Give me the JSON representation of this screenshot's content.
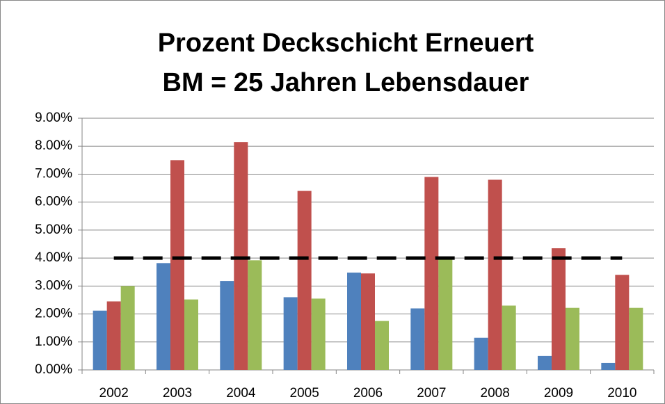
{
  "chart_data": {
    "type": "bar",
    "title_lines": [
      "Prozent Deckschicht Erneuert",
      "BM = 25 Jahren Lebensdauer"
    ],
    "categories": [
      "2002",
      "2003",
      "2004",
      "2005",
      "2006",
      "2007",
      "2008",
      "2009",
      "2010"
    ],
    "series": [
      {
        "color": "#4f81bd",
        "values": [
          2.12,
          3.82,
          3.18,
          2.6,
          3.48,
          2.2,
          1.15,
          0.5,
          0.25
        ]
      },
      {
        "color": "#c0504d",
        "values": [
          2.45,
          7.5,
          8.15,
          6.4,
          3.45,
          6.9,
          6.8,
          4.35,
          3.4
        ]
      },
      {
        "color": "#9bbb59",
        "values": [
          3.0,
          2.52,
          3.92,
          2.55,
          1.75,
          4.05,
          2.3,
          2.22,
          2.22
        ]
      },
      {
        "type": "line",
        "color": "#000000",
        "dashed": true,
        "values": [
          4,
          4,
          4,
          4,
          4,
          4,
          4,
          4,
          4
        ]
      }
    ],
    "ylim": [
      0,
      9
    ],
    "yticks": [
      {
        "value": 0,
        "label": "0.00%"
      },
      {
        "value": 1,
        "label": "1.00%"
      },
      {
        "value": 2,
        "label": "2.00%"
      },
      {
        "value": 3,
        "label": "3.00%"
      },
      {
        "value": 4,
        "label": "4.00%"
      },
      {
        "value": 5,
        "label": "5.00%"
      },
      {
        "value": 6,
        "label": "6.00%"
      },
      {
        "value": 7,
        "label": "7.00%"
      },
      {
        "value": 8,
        "label": "8.00%"
      },
      {
        "value": 9,
        "label": "9.00%"
      }
    ],
    "grid": true
  }
}
